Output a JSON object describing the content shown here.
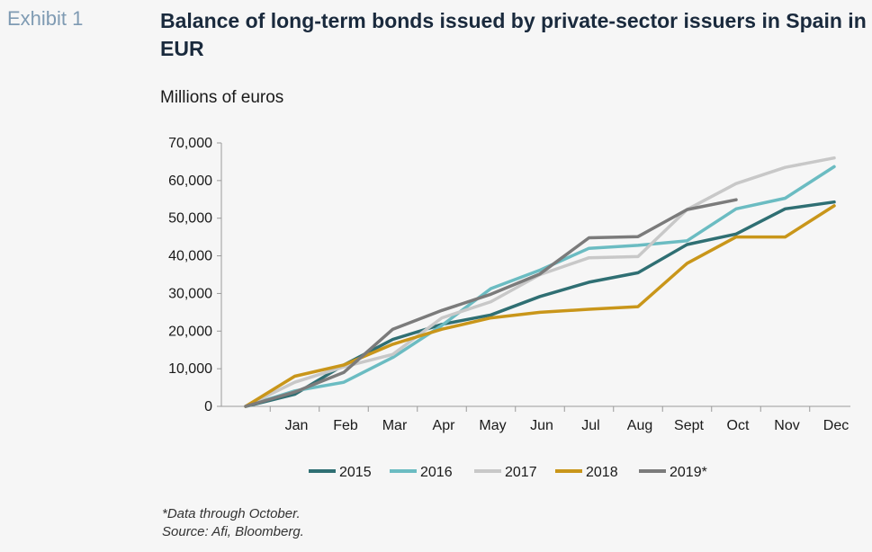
{
  "exhibit_label": "Exhibit 1",
  "chart_data": {
    "type": "line",
    "title": "Balance of long-term bonds issued by private-sector issuers in Spain in EUR",
    "subtitle": "Millions of euros",
    "categories": [
      "",
      "Jan",
      "Feb",
      "Mar",
      "Apr",
      "May",
      "Jun",
      "Jul",
      "Aug",
      "Sept",
      "Oct",
      "Nov",
      "Dec"
    ],
    "ylim": [
      0,
      70000
    ],
    "yticks": [
      0,
      10000,
      20000,
      30000,
      40000,
      50000,
      60000,
      70000
    ],
    "ytick_labels": [
      "0",
      "10,000",
      "20,000",
      "30,000",
      "40,000",
      "50,000",
      "60,000",
      "70,000"
    ],
    "grid": false,
    "legend_position": "bottom",
    "series": [
      {
        "name": "2015",
        "color": "#2f6f73",
        "values": [
          0,
          3200,
          11000,
          17800,
          21800,
          24300,
          29200,
          33000,
          35500,
          43000,
          45800,
          52500,
          54300
        ]
      },
      {
        "name": "2016",
        "color": "#6bbcc2",
        "values": [
          0,
          4100,
          6400,
          13000,
          21500,
          31300,
          36200,
          42000,
          42800,
          44000,
          52500,
          55300,
          63700
        ]
      },
      {
        "name": "2017",
        "color": "#c8c8c8",
        "values": [
          0,
          6400,
          10500,
          13800,
          23500,
          27800,
          35000,
          39500,
          39800,
          52300,
          59200,
          63500,
          66000
        ]
      },
      {
        "name": "2018",
        "color": "#c9961a",
        "values": [
          0,
          8000,
          11000,
          16500,
          20500,
          23500,
          25000,
          25800,
          26500,
          38000,
          45000,
          45000,
          53300
        ]
      },
      {
        "name": "2019*",
        "color": "#7b7b7b",
        "values": [
          0,
          3800,
          9000,
          20500,
          25500,
          29800,
          35200,
          44800,
          45100,
          52300,
          54900,
          null,
          null
        ]
      }
    ]
  },
  "footnote": {
    "note": "*Data through October.",
    "source": "Source: Afi, Bloomberg."
  }
}
